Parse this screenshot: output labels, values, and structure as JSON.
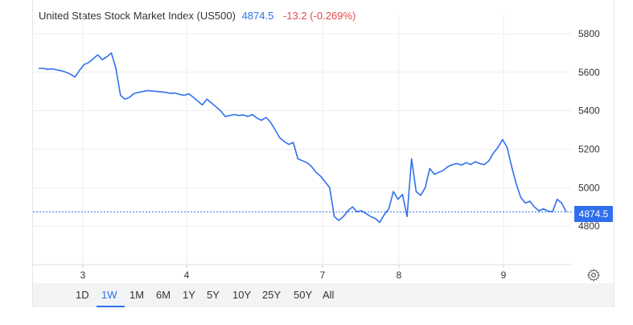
{
  "header": {
    "name": "United States Stock Market Index (US500)",
    "last": "4874.5",
    "change": "-13.2 (-0.269%)"
  },
  "price_badge": "4874.5",
  "colors": {
    "line": "#2f6fed",
    "change_negative": "#e5484d",
    "grid": "#eeeeee",
    "badge": "#2f6fed"
  },
  "ranges": [
    "1D",
    "1W",
    "1M",
    "6M",
    "1Y",
    "5Y",
    "10Y",
    "25Y",
    "50Y",
    "All"
  ],
  "active_range": "1W",
  "chart_data": {
    "type": "line",
    "title": "",
    "xlabel": "",
    "ylabel": "",
    "ylim": [
      4600,
      5900
    ],
    "yticks": [
      4800,
      5000,
      5200,
      5400,
      5600,
      5800
    ],
    "x_tick_labels": [
      "3",
      "4",
      "7",
      "8",
      "9"
    ],
    "grid": true,
    "last_value": 4874.5,
    "series": [
      {
        "values": [
          5620,
          5620,
          5615,
          5618,
          5612,
          5608,
          5600,
          5590,
          5575,
          5610,
          5640,
          5650,
          5670,
          5690,
          5665,
          5680,
          5700,
          5620,
          5480,
          5460,
          5470,
          5490,
          5495,
          5500,
          5505,
          5502,
          5500,
          5498,
          5495,
          5490,
          5492,
          5485,
          5480,
          5488,
          5470,
          5450,
          5430,
          5460,
          5440,
          5420,
          5400,
          5370,
          5375,
          5380,
          5375,
          5378,
          5370,
          5380,
          5362,
          5350,
          5365,
          5340,
          5300,
          5260,
          5240,
          5225,
          5235,
          5150,
          5140,
          5130,
          5110,
          5080,
          5060,
          5030,
          5000,
          4850,
          4830,
          4850,
          4880,
          4900,
          4875,
          4880,
          4865,
          4850,
          4840,
          4820,
          4860,
          4890,
          4980,
          4940,
          4965,
          4850,
          5150,
          4980,
          4960,
          5000,
          5100,
          5070,
          5080,
          5090,
          5110,
          5120,
          5125,
          5118,
          5130,
          5120,
          5135,
          5125,
          5120,
          5140,
          5180,
          5210,
          5250,
          5210,
          5110,
          5020,
          4950,
          4920,
          4930,
          4900,
          4880,
          4890,
          4878,
          4875,
          4940,
          4920,
          4874.5
        ]
      }
    ]
  }
}
